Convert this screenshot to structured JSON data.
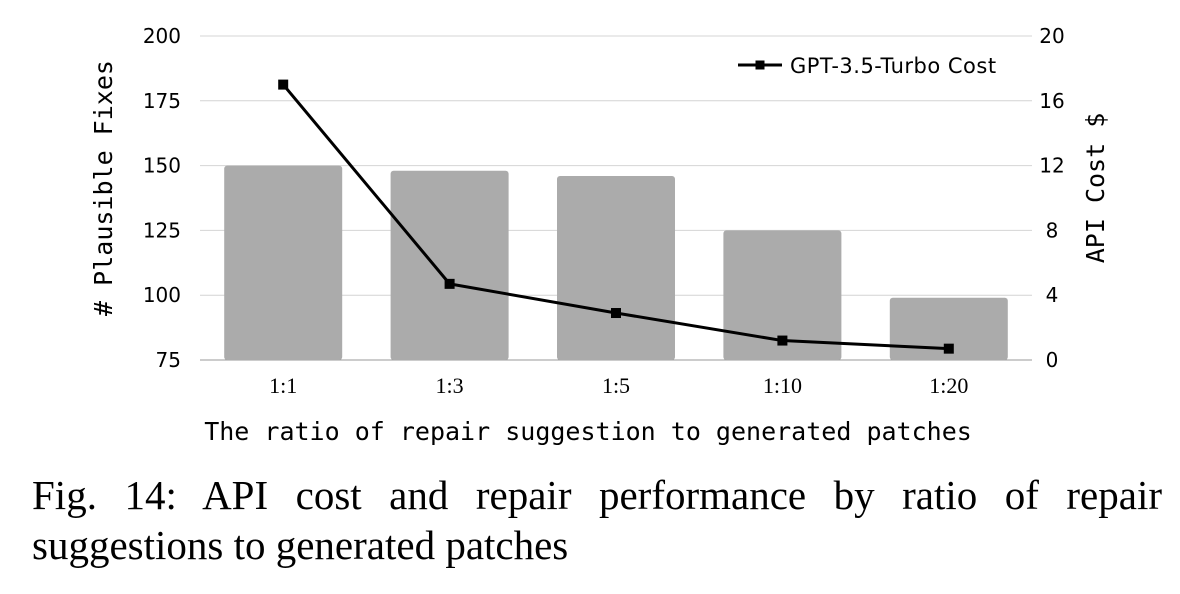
{
  "chart_data": {
    "type": "bar",
    "categories": [
      "1:1",
      "1:3",
      "1:5",
      "1:10",
      "1:20"
    ],
    "series": [
      {
        "name": "",
        "type": "bar",
        "axis": "left",
        "values": [
          150,
          148,
          146,
          125,
          99
        ],
        "color": "#ababab"
      },
      {
        "name": "GPT-3.5-Turbo Cost",
        "type": "line",
        "axis": "right",
        "values": [
          17,
          4.7,
          2.9,
          1.2,
          0.7
        ],
        "color": "#000000",
        "marker": "square"
      }
    ],
    "xlabel": "The ratio of repair suggestion to generated patches",
    "ylabel": "# Plausible Fixes",
    "y2label": "API Cost $",
    "ylim": [
      75,
      200
    ],
    "yticks": [
      75,
      100,
      125,
      150,
      175,
      200
    ],
    "y2lim": [
      0,
      20
    ],
    "y2ticks": [
      0,
      4,
      8,
      12,
      16,
      20
    ],
    "grid": true,
    "legend": "top-right"
  },
  "caption": "Fig. 14: API cost and repair performance by ratio of repair suggestions to generated patches"
}
